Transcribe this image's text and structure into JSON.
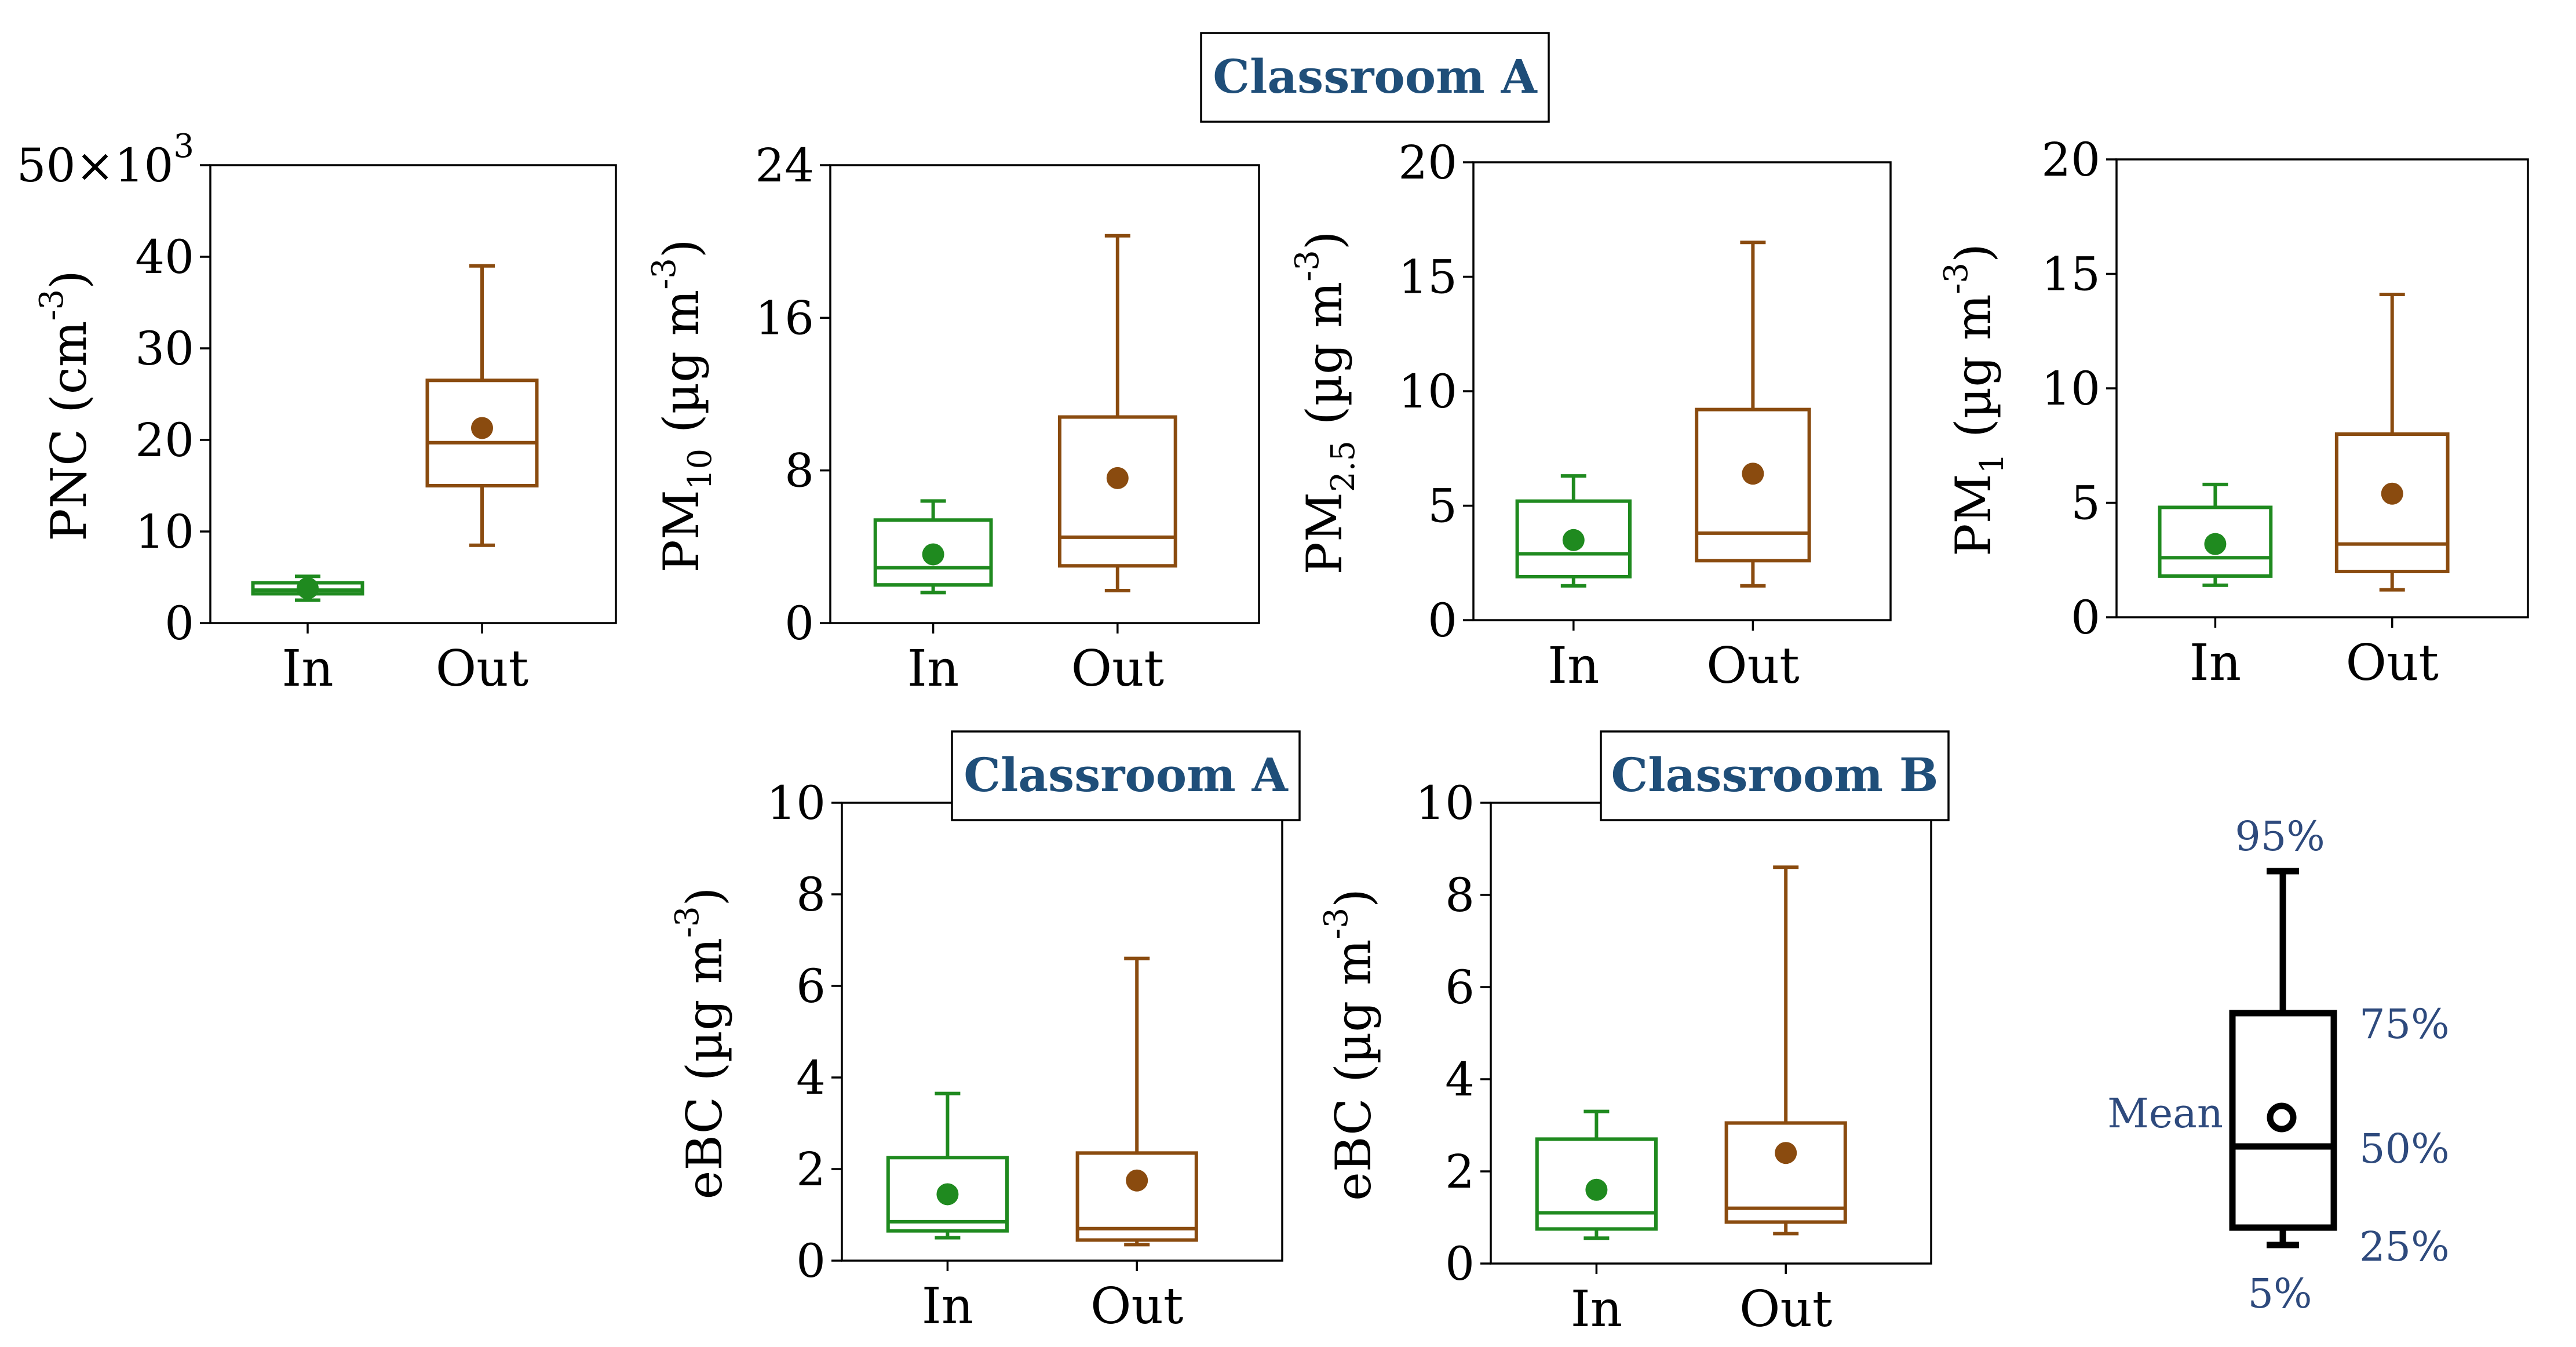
{
  "colors": {
    "in": "#1f8a1f",
    "out": "#8a4b0f",
    "legend": "#000000",
    "title": "#1f4e79"
  },
  "titles": {
    "top": "Classroom A",
    "eBC_A": "Classroom A",
    "eBC_B": "Classroom B"
  },
  "legend": {
    "p95": "95%",
    "p75": "75%",
    "p50": "50%",
    "p25": "25%",
    "p5": "5%",
    "mean": "Mean",
    "icon": "box-plot-legend-icon"
  },
  "chart_data": [
    {
      "type": "box",
      "ylabel": "PNC (cm⁻³)",
      "ylabel_parts": [
        "PNC (cm",
        "-3",
        ")"
      ],
      "y_multiplier": "50×10³",
      "y_multiplier_parts": [
        "50×10",
        "3"
      ],
      "ylim": [
        0,
        50000
      ],
      "yticks": [
        0,
        10000,
        20000,
        30000,
        40000,
        50000
      ],
      "ytick_labels": [
        "0",
        "10",
        "20",
        "30",
        "40",
        ""
      ],
      "categories": [
        "In",
        "Out"
      ],
      "boxes": [
        {
          "category": "In",
          "p5": 2500,
          "p25": 3200,
          "p50": 3600,
          "p75": 4400,
          "p95": 5100,
          "mean": 3800
        },
        {
          "category": "Out",
          "p5": 8500,
          "p25": 15000,
          "p50": 19700,
          "p75": 26500,
          "p95": 39000,
          "mean": 21300
        }
      ]
    },
    {
      "type": "box",
      "ylabel": "PM₁₀ (µg m⁻³)",
      "ylabel_parts": [
        "PM",
        "10",
        " (µg m",
        "-3",
        ")"
      ],
      "ylim": [
        0,
        24
      ],
      "yticks": [
        0,
        8,
        16,
        24
      ],
      "ytick_labels": [
        "0",
        "8",
        "16",
        "24"
      ],
      "categories": [
        "In",
        "Out"
      ],
      "boxes": [
        {
          "category": "In",
          "p5": 1.6,
          "p25": 2.0,
          "p50": 2.9,
          "p75": 5.4,
          "p95": 6.4,
          "mean": 3.6
        },
        {
          "category": "Out",
          "p5": 1.7,
          "p25": 3.0,
          "p50": 4.5,
          "p75": 10.8,
          "p95": 20.3,
          "mean": 7.6
        }
      ]
    },
    {
      "type": "box",
      "ylabel": "PM₂.₅ (µg m⁻³)",
      "ylabel_parts": [
        "PM",
        "2.5",
        " (µg m",
        "-3",
        ")"
      ],
      "ylim": [
        0,
        20
      ],
      "yticks": [
        0,
        5,
        10,
        15,
        20
      ],
      "ytick_labels": [
        "0",
        "5",
        "10",
        "15",
        "20"
      ],
      "categories": [
        "In",
        "Out"
      ],
      "boxes": [
        {
          "category": "In",
          "p5": 1.5,
          "p25": 1.9,
          "p50": 2.9,
          "p75": 5.2,
          "p95": 6.3,
          "mean": 3.5
        },
        {
          "category": "Out",
          "p5": 1.5,
          "p25": 2.6,
          "p50": 3.8,
          "p75": 9.2,
          "p95": 16.5,
          "mean": 6.4
        }
      ]
    },
    {
      "type": "box",
      "ylabel": "PM₁ (µg m⁻³)",
      "ylabel_parts": [
        "PM",
        "1",
        " (µg m",
        "-3",
        ")"
      ],
      "ylim": [
        0,
        20
      ],
      "yticks": [
        0,
        5,
        10,
        15,
        20
      ],
      "ytick_labels": [
        "0",
        "5",
        "10",
        "15",
        "20"
      ],
      "categories": [
        "In",
        "Out"
      ],
      "boxes": [
        {
          "category": "In",
          "p5": 1.4,
          "p25": 1.8,
          "p50": 2.6,
          "p75": 4.8,
          "p95": 5.8,
          "mean": 3.2
        },
        {
          "category": "Out",
          "p5": 1.2,
          "p25": 2.0,
          "p50": 3.2,
          "p75": 8.0,
          "p95": 14.1,
          "mean": 5.4
        }
      ]
    },
    {
      "type": "box",
      "title": "Classroom A",
      "ylabel": "eBC (µg m⁻³)",
      "ylabel_parts": [
        "eBC (µg m",
        "-3",
        ")"
      ],
      "ylim": [
        0,
        10
      ],
      "yticks": [
        0,
        2,
        4,
        6,
        8,
        10
      ],
      "ytick_labels": [
        "0",
        "2",
        "4",
        "6",
        "8",
        "10"
      ],
      "categories": [
        "In",
        "Out"
      ],
      "boxes": [
        {
          "category": "In",
          "p5": 0.5,
          "p25": 0.65,
          "p50": 0.85,
          "p75": 2.25,
          "p95": 3.65,
          "mean": 1.45
        },
        {
          "category": "Out",
          "p5": 0.35,
          "p25": 0.45,
          "p50": 0.7,
          "p75": 2.35,
          "p95": 6.6,
          "mean": 1.75
        }
      ]
    },
    {
      "type": "box",
      "title": "Classroom B",
      "ylabel": "eBC (µg m⁻³)",
      "ylabel_parts": [
        "eBC (µg m",
        "-3",
        ")"
      ],
      "ylim": [
        0,
        10
      ],
      "yticks": [
        0,
        2,
        4,
        6,
        8,
        10
      ],
      "ytick_labels": [
        "0",
        "2",
        "4",
        "6",
        "8",
        "10"
      ],
      "categories": [
        "In",
        "Out"
      ],
      "boxes": [
        {
          "category": "In",
          "p5": 0.55,
          "p25": 0.75,
          "p50": 1.1,
          "p75": 2.7,
          "p95": 3.3,
          "mean": 1.6
        },
        {
          "category": "Out",
          "p5": 0.65,
          "p25": 0.9,
          "p50": 1.2,
          "p75": 3.05,
          "p95": 8.6,
          "mean": 2.4
        }
      ]
    }
  ]
}
